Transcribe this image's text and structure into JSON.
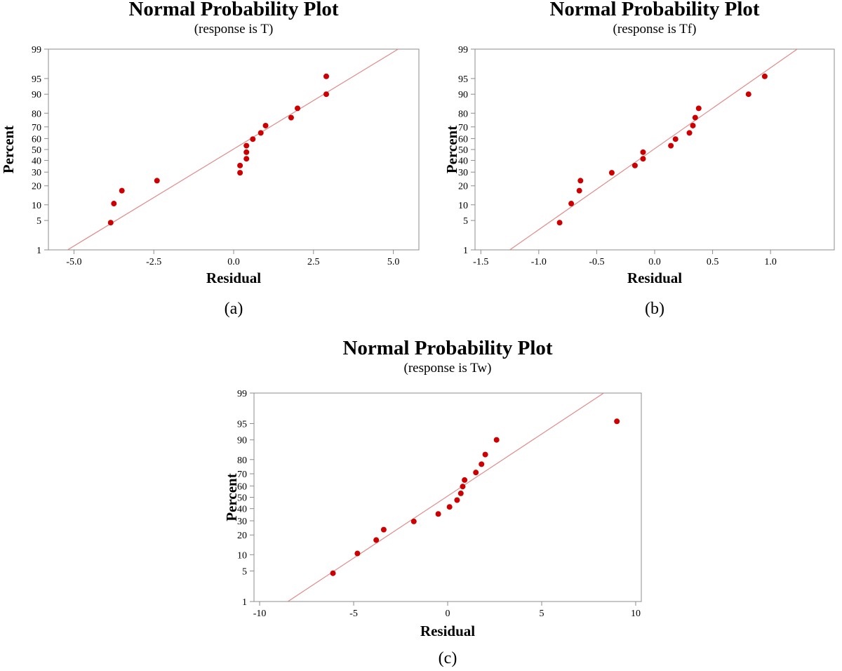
{
  "chart_data": [
    {
      "id": "a",
      "type": "scatter",
      "title": "Normal Probability Plot",
      "subtitle": "(response is T)",
      "xlabel": "Residual",
      "ylabel": "Percent",
      "panel_label": "(a)",
      "xlim": [
        -5.8,
        5.8
      ],
      "x_ticks": [
        -5.0,
        -2.5,
        0.0,
        2.5,
        5.0
      ],
      "x_tick_labels": [
        "-5.0",
        "-2.5",
        "0.0",
        "2.5",
        "5.0"
      ],
      "y_scale": "normal-probability",
      "y_ticks": [
        1,
        5,
        10,
        20,
        30,
        40,
        50,
        60,
        70,
        80,
        90,
        95,
        99
      ],
      "y_tick_labels": [
        "1",
        "5",
        "10",
        "20",
        "30",
        "40",
        "50",
        "60",
        "70",
        "80",
        "90",
        "95",
        "99"
      ],
      "grid": false,
      "fit_line": [
        [
          -5.2,
          1
        ],
        [
          5.15,
          99
        ]
      ],
      "points": [
        {
          "x": -3.85,
          "y": 4.5
        },
        {
          "x": -3.75,
          "y": 10.5
        },
        {
          "x": -3.5,
          "y": 17
        },
        {
          "x": -2.4,
          "y": 23.5
        },
        {
          "x": 0.2,
          "y": 29.5
        },
        {
          "x": 0.2,
          "y": 35.5
        },
        {
          "x": 0.4,
          "y": 41.5
        },
        {
          "x": 0.4,
          "y": 47.5
        },
        {
          "x": 0.4,
          "y": 53.5
        },
        {
          "x": 0.6,
          "y": 59.5
        },
        {
          "x": 0.85,
          "y": 65
        },
        {
          "x": 1.0,
          "y": 71
        },
        {
          "x": 1.8,
          "y": 77
        },
        {
          "x": 2.0,
          "y": 83
        },
        {
          "x": 2.9,
          "y": 90
        },
        {
          "x": 2.9,
          "y": 95.5
        }
      ]
    },
    {
      "id": "b",
      "type": "scatter",
      "title": "Normal Probability Plot",
      "subtitle": "(response is Tf)",
      "xlabel": "Residual",
      "ylabel": "Percent",
      "panel_label": "(b)",
      "xlim": [
        -1.55,
        1.55
      ],
      "x_ticks": [
        -1.5,
        -1.0,
        -0.5,
        0.0,
        0.5,
        1.0
      ],
      "x_tick_labels": [
        "-1.5",
        "-1.0",
        "-0.5",
        "0.0",
        "0.5",
        "1.0"
      ],
      "y_scale": "normal-probability",
      "y_ticks": [
        1,
        5,
        10,
        20,
        30,
        40,
        50,
        60,
        70,
        80,
        90,
        95,
        99
      ],
      "y_tick_labels": [
        "1",
        "5",
        "10",
        "20",
        "30",
        "40",
        "50",
        "60",
        "70",
        "80",
        "90",
        "95",
        "99"
      ],
      "grid": false,
      "fit_line": [
        [
          -1.25,
          1
        ],
        [
          1.23,
          99
        ]
      ],
      "points": [
        {
          "x": -0.82,
          "y": 4.5
        },
        {
          "x": -0.72,
          "y": 10.5
        },
        {
          "x": -0.65,
          "y": 17
        },
        {
          "x": -0.64,
          "y": 23.5
        },
        {
          "x": -0.37,
          "y": 29.5
        },
        {
          "x": -0.17,
          "y": 35.5
        },
        {
          "x": -0.1,
          "y": 41.5
        },
        {
          "x": -0.1,
          "y": 47.5
        },
        {
          "x": 0.14,
          "y": 53.5
        },
        {
          "x": 0.18,
          "y": 59.5
        },
        {
          "x": 0.3,
          "y": 65
        },
        {
          "x": 0.33,
          "y": 71
        },
        {
          "x": 0.35,
          "y": 77
        },
        {
          "x": 0.38,
          "y": 83
        },
        {
          "x": 0.81,
          "y": 90
        },
        {
          "x": 0.95,
          "y": 95.5
        }
      ]
    },
    {
      "id": "c",
      "type": "scatter",
      "title": "Normal Probability Plot",
      "subtitle": "(response is Tw)",
      "xlabel": "Residual",
      "ylabel": "Percent",
      "panel_label": "(c)",
      "xlim": [
        -10.3,
        10.3
      ],
      "x_ticks": [
        -10,
        -5,
        0,
        5,
        10
      ],
      "x_tick_labels": [
        "-10",
        "-5",
        "0",
        "5",
        "10"
      ],
      "y_scale": "normal-probability",
      "y_ticks": [
        1,
        5,
        10,
        20,
        30,
        40,
        50,
        60,
        70,
        80,
        90,
        95,
        99
      ],
      "y_tick_labels": [
        "1",
        "5",
        "10",
        "20",
        "30",
        "40",
        "50",
        "60",
        "70",
        "80",
        "90",
        "95",
        "99"
      ],
      "grid": false,
      "fit_line": [
        [
          -8.5,
          1
        ],
        [
          8.3,
          99
        ]
      ],
      "points": [
        {
          "x": -6.1,
          "y": 4.5
        },
        {
          "x": -4.8,
          "y": 10.5
        },
        {
          "x": -3.8,
          "y": 17
        },
        {
          "x": -3.4,
          "y": 23.5
        },
        {
          "x": -1.8,
          "y": 29.5
        },
        {
          "x": -0.5,
          "y": 35.5
        },
        {
          "x": 0.1,
          "y": 41.5
        },
        {
          "x": 0.5,
          "y": 47.5
        },
        {
          "x": 0.7,
          "y": 53.5
        },
        {
          "x": 0.8,
          "y": 59.5
        },
        {
          "x": 0.9,
          "y": 65
        },
        {
          "x": 1.5,
          "y": 71
        },
        {
          "x": 1.8,
          "y": 77
        },
        {
          "x": 2.0,
          "y": 83
        },
        {
          "x": 2.6,
          "y": 90
        },
        {
          "x": 9.0,
          "y": 95.5
        }
      ]
    }
  ],
  "colors": {
    "marker": "#cc0000",
    "fit_line": "#e08a8a",
    "frame": "#8c8c8c",
    "text": "#000000"
  }
}
